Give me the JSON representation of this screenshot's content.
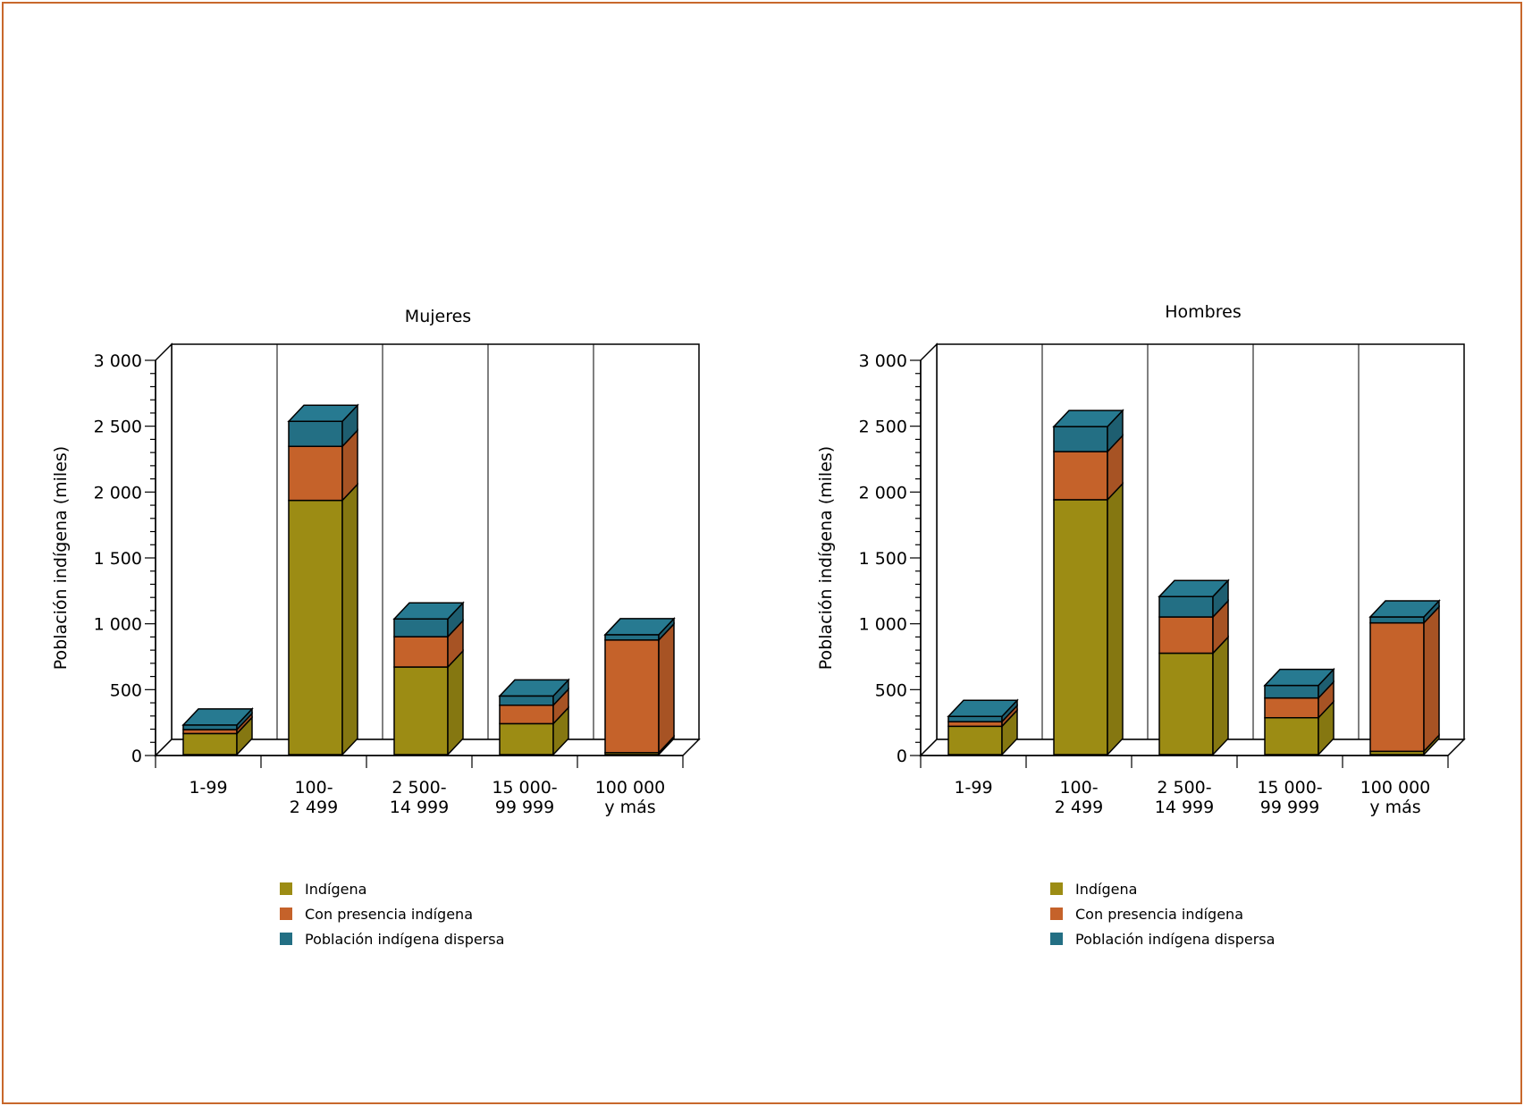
{
  "colors": {
    "frame": "#c8682c",
    "Indígena": "#9c8c14",
    "Con presencia indígena": "#c5622a",
    "Población indígena dispersa": "#236f84"
  },
  "chart_data": [
    {
      "type": "bar",
      "stacked": true,
      "three_d": true,
      "title": "Mujeres",
      "ylabel": "Población indígena (miles)",
      "xlabel": "",
      "ylim": [
        0,
        3000
      ],
      "yticks": [
        0,
        500,
        1000,
        1500,
        2000,
        2500,
        3000
      ],
      "ytick_labels": [
        "0",
        "500",
        "1 000",
        "1 500",
        "2 000",
        "2 500",
        "3 000"
      ],
      "categories": [
        "1-99",
        "100-\n2 499",
        "2 500-\n14 999",
        "15 000-\n99 999",
        "100 000\ny más"
      ],
      "series": [
        {
          "name": "Indígena",
          "values": [
            160,
            1930,
            665,
            235,
            15
          ]
        },
        {
          "name": "Con presencia indígena",
          "values": [
            30,
            410,
            230,
            140,
            855
          ]
        },
        {
          "name": "Población indígena dispersa",
          "values": [
            35,
            190,
            135,
            70,
            40
          ]
        }
      ],
      "legend": "bottom"
    },
    {
      "type": "bar",
      "stacked": true,
      "three_d": true,
      "title": "Hombres",
      "ylabel": "Población indígena (miles)",
      "xlabel": "",
      "ylim": [
        0,
        3000
      ],
      "yticks": [
        0,
        500,
        1000,
        1500,
        2000,
        2500,
        3000
      ],
      "ytick_labels": [
        "0",
        "500",
        "1 000",
        "1 500",
        "2 000",
        "2 500",
        "3 000"
      ],
      "categories": [
        "1-99",
        "100-\n2 499",
        "2 500-\n14 999",
        "15 000-\n99 999",
        "100 000\ny más"
      ],
      "series": [
        {
          "name": "Indígena",
          "values": [
            215,
            1935,
            770,
            280,
            25
          ]
        },
        {
          "name": "Con presencia indígena",
          "values": [
            35,
            365,
            275,
            150,
            975
          ]
        },
        {
          "name": "Población indígena dispersa",
          "values": [
            40,
            190,
            155,
            95,
            45
          ]
        }
      ],
      "legend": "bottom"
    }
  ]
}
